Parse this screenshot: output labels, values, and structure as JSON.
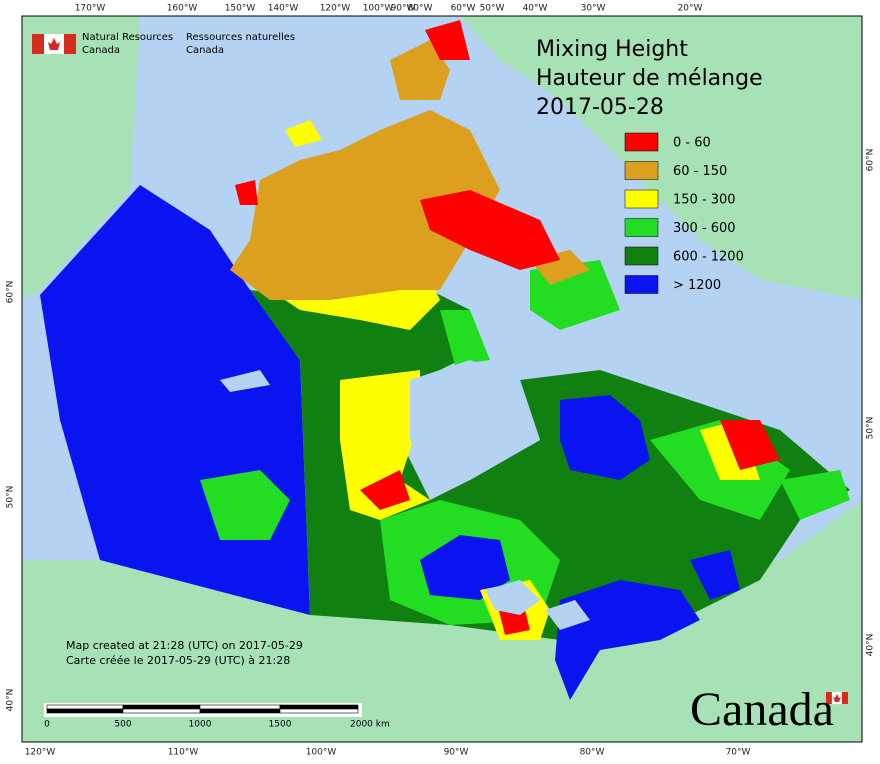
{
  "header": {
    "agency_en": [
      "Natural Resources",
      "Canada"
    ],
    "agency_fr": [
      "Ressources naturelles",
      "Canada"
    ]
  },
  "title": [
    "Mixing Height",
    "Hauteur de mélange",
    "2017-05-28"
  ],
  "legend": [
    {
      "label": "0 - 60",
      "color": "#ff0000"
    },
    {
      "label": "60 - 150",
      "color": "#dca01e"
    },
    {
      "label": "150 - 300",
      "color": "#ffff00"
    },
    {
      "label": "300 - 600",
      "color": "#22dd22"
    },
    {
      "label": "600 - 1200",
      "color": "#108010"
    },
    {
      "label": "> 1200",
      "color": "#0a14f0"
    }
  ],
  "top_longitudes": [
    "170°W",
    "160°W",
    "150°W",
    "140°W",
    "120°W",
    "100°W",
    "90°W",
    "80°W",
    "60°W",
    "50°W",
    "40°W",
    "30°W",
    "20°W"
  ],
  "bottom_longitudes": [
    "120°W",
    "110°W",
    "100°W",
    "90°W",
    "80°W",
    "70°W"
  ],
  "left_latitudes": [
    "60°N",
    "50°N",
    "40°N"
  ],
  "right_latitudes": [
    "60°N",
    "50°N",
    "40°N"
  ],
  "notes": [
    "Map created at 21:28 (UTC) on 2017-05-29",
    "Carte créée le 2017-05-29 (UTC) à 21:28"
  ],
  "scale_bar": [
    "0",
    "500",
    "1000",
    "1500",
    "2000  km"
  ],
  "wordmark": "Canada"
}
